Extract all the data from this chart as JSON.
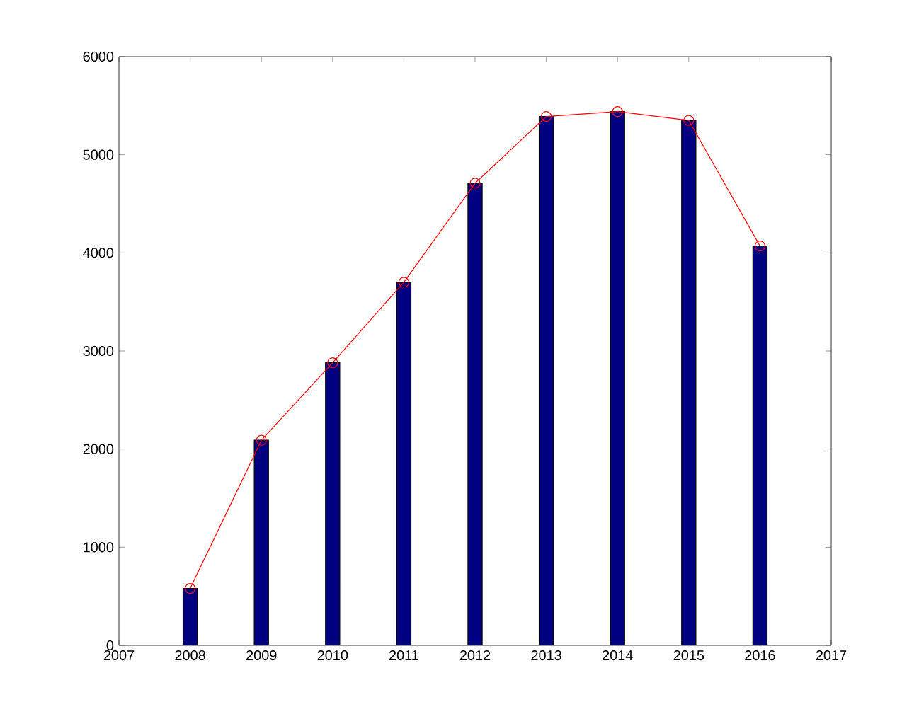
{
  "chart_data": {
    "type": "bar",
    "x": [
      2008,
      2009,
      2010,
      2011,
      2012,
      2013,
      2014,
      2015,
      2016
    ],
    "xlim": [
      2007,
      2017
    ],
    "xticks": [
      2007,
      2008,
      2009,
      2010,
      2011,
      2012,
      2013,
      2014,
      2015,
      2016,
      2017
    ],
    "ylim": [
      0,
      6000
    ],
    "yticks": [
      0,
      1000,
      2000,
      3000,
      4000,
      5000,
      6000
    ],
    "grid": false,
    "series": [
      {
        "color": "#000080",
        "values": [
          580,
          2090,
          2880,
          3700,
          4710,
          5390,
          5440,
          5350,
          4070
        ]
      },
      {
        "type": "line",
        "color": "#ff0000",
        "marker": "circle",
        "line_style": "solid",
        "values": [
          580,
          2090,
          2880,
          3700,
          4710,
          5390,
          5440,
          5350,
          4070
        ]
      }
    ]
  }
}
